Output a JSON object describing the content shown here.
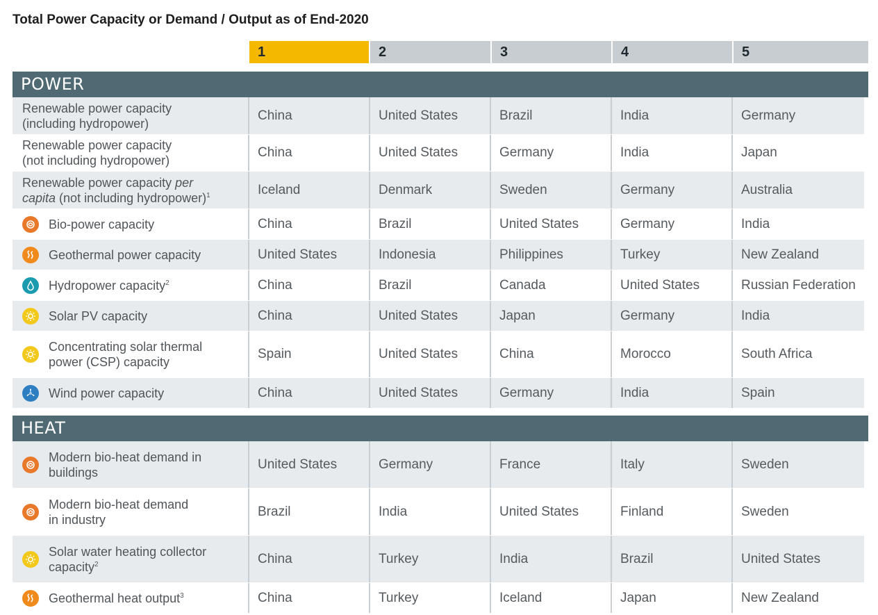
{
  "title": "Total Power Capacity or Demand / Output as of End-2020",
  "ranks": [
    "1",
    "2",
    "3",
    "4",
    "5"
  ],
  "sections": [
    {
      "name": "POWER",
      "rows": [
        {
          "label_lines": [
            "Renewable power capacity",
            "(including hydropower)"
          ],
          "icon": null,
          "values": [
            "China",
            "United States",
            "Brazil",
            "India",
            "Germany"
          ]
        },
        {
          "label_lines": [
            "Renewable power capacity",
            "(not including hydropower)"
          ],
          "icon": null,
          "values": [
            "China",
            "United States",
            "Germany",
            "India",
            "Japan"
          ]
        },
        {
          "label_lines": [
            "Renewable power capacity per",
            "capita (not including hydropower)"
          ],
          "label_sup": "1",
          "icon": null,
          "values": [
            "Iceland",
            "Denmark",
            "Sweden",
            "Germany",
            "Australia"
          ]
        },
        {
          "label_lines": [
            "Bio-power capacity"
          ],
          "icon": "bio-icon",
          "values": [
            "China",
            "Brazil",
            "United States",
            "Germany",
            "India"
          ]
        },
        {
          "label_lines": [
            "Geothermal power capacity"
          ],
          "icon": "geothermal-icon",
          "values": [
            "United States",
            "Indonesia",
            "Philippines",
            "Turkey",
            "New Zealand"
          ]
        },
        {
          "label_lines": [
            "Hydropower capacity"
          ],
          "label_sup": "2",
          "icon": "hydro-icon",
          "values": [
            "China",
            "Brazil",
            "Canada",
            "United States",
            "Russian Federation"
          ]
        },
        {
          "label_lines": [
            "Solar PV capacity"
          ],
          "icon": "solar-icon",
          "values": [
            "China",
            "United States",
            "Japan",
            "Germany",
            "India"
          ]
        },
        {
          "label_lines": [
            "Concentrating solar thermal",
            "power (CSP) capacity"
          ],
          "icon": "solar-icon",
          "values": [
            "Spain",
            "United States",
            "China",
            "Morocco",
            "South Africa"
          ]
        },
        {
          "label_lines": [
            "Wind power capacity"
          ],
          "icon": "wind-icon",
          "values": [
            "China",
            "United States",
            "Germany",
            "India",
            "Spain"
          ]
        }
      ]
    },
    {
      "name": "HEAT",
      "rows": [
        {
          "label_lines": [
            "Modern bio-heat demand in",
            "buildings"
          ],
          "icon": "bio-icon",
          "values": [
            "United States",
            "Germany",
            "France",
            "Italy",
            "Sweden"
          ]
        },
        {
          "label_lines": [
            "Modern bio-heat demand",
            "in industry"
          ],
          "icon": "bio-icon",
          "values": [
            "Brazil",
            "India",
            "United States",
            "Finland",
            "Sweden"
          ]
        },
        {
          "label_lines": [
            "Solar water heating collector",
            "capacity"
          ],
          "label_sup": "2",
          "icon": "solar-icon",
          "values": [
            "China",
            "Turkey",
            "India",
            "Brazil",
            "United States"
          ]
        },
        {
          "label_lines": [
            "Geothermal heat output"
          ],
          "label_sup": "3",
          "icon": "geothermal-icon",
          "values": [
            "China",
            "Turkey",
            "Iceland",
            "Japan",
            "New Zealand"
          ]
        }
      ]
    }
  ],
  "colors": {
    "rank_highlight": "#f5b800",
    "rank_header": "#c8cdd1",
    "section_bar": "#4f6a72",
    "row_shade": "#e8ebed"
  }
}
